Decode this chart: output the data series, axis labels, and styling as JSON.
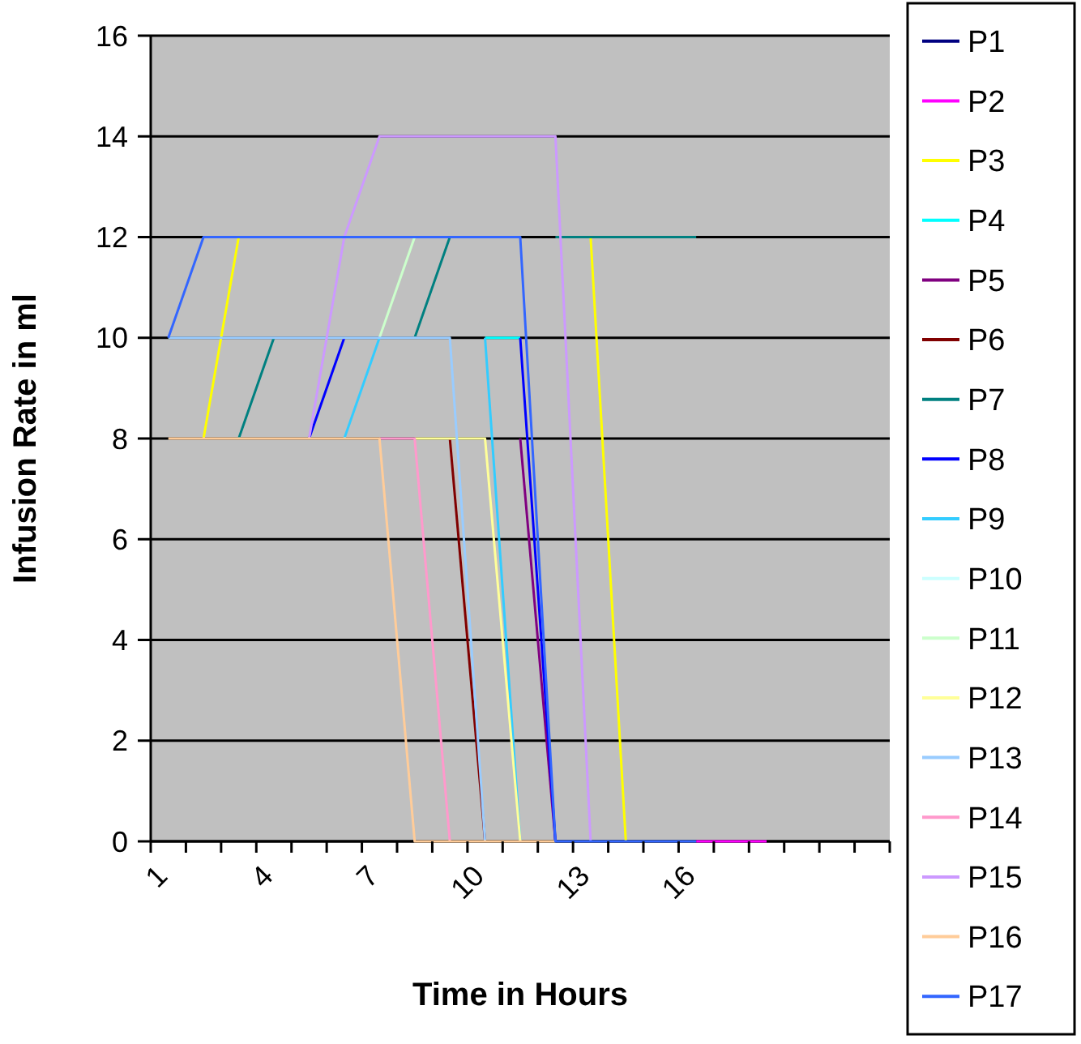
{
  "chart_data": {
    "type": "line",
    "xlabel": "Time in Hours",
    "ylabel": "Infusion Rate in ml",
    "categories": [
      "1",
      null,
      null,
      "4",
      null,
      null,
      "7",
      null,
      null,
      "10",
      null,
      null,
      "13",
      null,
      null,
      "16",
      null,
      null,
      null,
      null,
      null
    ],
    "ylim": [
      0,
      16
    ],
    "yticks": [
      0,
      2,
      4,
      6,
      8,
      10,
      12,
      14,
      16
    ],
    "grid": "y",
    "legend": "right",
    "marker": "none",
    "series": [
      {
        "name": "P1",
        "color": "#000080",
        "values": [
          null,
          null,
          null,
          null,
          null,
          null,
          null,
          null,
          null,
          null,
          null,
          null,
          null,
          null,
          null,
          null,
          null,
          null,
          null,
          null,
          null
        ]
      },
      {
        "name": "P2",
        "color": "#ff00ff",
        "values": [
          null,
          null,
          null,
          null,
          null,
          null,
          null,
          null,
          null,
          null,
          null,
          null,
          null,
          null,
          null,
          0,
          0,
          0,
          null,
          null,
          null
        ]
      },
      {
        "name": "P3",
        "color": "#ffff00",
        "values": [
          null,
          8,
          12,
          null,
          null,
          null,
          null,
          null,
          null,
          null,
          null,
          null,
          12,
          0,
          null,
          null,
          null,
          null,
          null,
          null,
          null
        ]
      },
      {
        "name": "P4",
        "color": "#00ffff",
        "values": [
          null,
          null,
          null,
          null,
          null,
          null,
          null,
          null,
          null,
          10,
          10,
          null,
          null,
          null,
          null,
          null,
          null,
          null,
          null,
          null,
          null
        ]
      },
      {
        "name": "P5",
        "color": "#800080",
        "values": [
          null,
          null,
          null,
          null,
          null,
          null,
          null,
          null,
          null,
          null,
          8,
          0,
          null,
          null,
          null,
          null,
          null,
          null,
          null,
          null,
          null
        ]
      },
      {
        "name": "P6",
        "color": "#800000",
        "values": [
          null,
          null,
          null,
          null,
          null,
          null,
          null,
          null,
          8,
          0,
          null,
          null,
          null,
          null,
          null,
          null,
          null,
          null,
          null,
          null,
          null
        ]
      },
      {
        "name": "P7",
        "color": "#008080",
        "values": [
          null,
          null,
          8,
          10,
          null,
          null,
          null,
          10,
          12,
          null,
          null,
          12,
          12,
          12,
          12,
          12,
          null,
          null,
          null,
          null,
          null
        ]
      },
      {
        "name": "P8",
        "color": "#0000ff",
        "values": [
          null,
          null,
          null,
          null,
          8,
          10,
          null,
          null,
          null,
          null,
          10,
          0,
          null,
          null,
          null,
          null,
          null,
          null,
          null,
          null,
          null
        ]
      },
      {
        "name": "P9",
        "color": "#33ccff",
        "values": [
          null,
          null,
          null,
          null,
          null,
          8,
          10,
          null,
          null,
          10,
          0,
          null,
          null,
          null,
          null,
          null,
          null,
          null,
          null,
          null,
          null
        ]
      },
      {
        "name": "P10",
        "color": "#ccffff",
        "values": [
          null,
          null,
          null,
          null,
          null,
          null,
          null,
          null,
          null,
          null,
          null,
          null,
          null,
          null,
          null,
          null,
          null,
          null,
          null,
          null,
          null
        ]
      },
      {
        "name": "P11",
        "color": "#ccffcc",
        "values": [
          null,
          null,
          null,
          null,
          null,
          null,
          10,
          12,
          null,
          null,
          null,
          null,
          null,
          null,
          null,
          null,
          null,
          null,
          null,
          null,
          null
        ]
      },
      {
        "name": "P12",
        "color": "#ffff99",
        "values": [
          null,
          null,
          null,
          null,
          null,
          null,
          null,
          8,
          8,
          8,
          0,
          null,
          null,
          null,
          null,
          null,
          null,
          null,
          null,
          null,
          null
        ]
      },
      {
        "name": "P13",
        "color": "#99ccff",
        "values": [
          10,
          10,
          10,
          10,
          10,
          10,
          10,
          10,
          10,
          0,
          null,
          null,
          null,
          null,
          null,
          null,
          null,
          null,
          null,
          null,
          null
        ]
      },
      {
        "name": "P14",
        "color": "#ff99cc",
        "values": [
          null,
          null,
          null,
          null,
          null,
          null,
          8,
          8,
          0,
          null,
          null,
          null,
          null,
          null,
          null,
          null,
          null,
          null,
          null,
          null,
          null
        ]
      },
      {
        "name": "P15",
        "color": "#cc99ff",
        "values": [
          null,
          null,
          null,
          null,
          8,
          12,
          14,
          14,
          14,
          14,
          14,
          14,
          0,
          null,
          null,
          null,
          null,
          null,
          null,
          null,
          null
        ]
      },
      {
        "name": "P16",
        "color": "#ffcc99",
        "values": [
          8,
          8,
          8,
          8,
          8,
          8,
          8,
          0,
          0,
          0,
          0,
          0,
          null,
          null,
          null,
          null,
          null,
          null,
          null,
          null,
          null
        ]
      },
      {
        "name": "P17",
        "color": "#3366ff",
        "values": [
          10,
          12,
          12,
          12,
          12,
          12,
          12,
          12,
          12,
          12,
          12,
          0,
          0,
          0,
          0,
          0,
          null,
          null,
          null,
          null,
          null
        ]
      }
    ]
  }
}
